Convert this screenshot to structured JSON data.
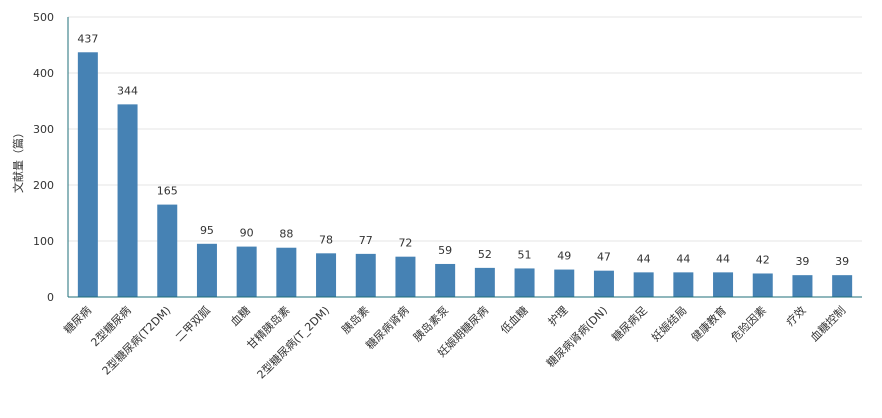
{
  "chart_data": {
    "type": "bar",
    "title": "",
    "xlabel": "",
    "ylabel": "文献量（篇）",
    "ylim": [
      0,
      500
    ],
    "yticks": [
      0,
      100,
      200,
      300,
      400,
      500
    ],
    "grid": true,
    "legend": "none",
    "bar_color": "#4682b4",
    "categories": [
      "糖尿病",
      "2型糖尿病",
      "2型糖尿病(T2DM)",
      "二甲双胍",
      "血糖",
      "甘精胰岛素",
      "2型糖尿病(T_2DM)",
      "胰岛素",
      "糖尿病肾病",
      "胰岛素泵",
      "妊娠期糖尿病",
      "低血糖",
      "护理",
      "糖尿病肾病(DN)",
      "糖尿病足",
      "妊娠结局",
      "健康教育",
      "危险因素",
      "疗效",
      "血糖控制"
    ],
    "values": [
      437,
      344,
      165,
      95,
      90,
      88,
      78,
      77,
      72,
      59,
      52,
      51,
      49,
      47,
      44,
      44,
      44,
      42,
      39,
      39
    ]
  }
}
